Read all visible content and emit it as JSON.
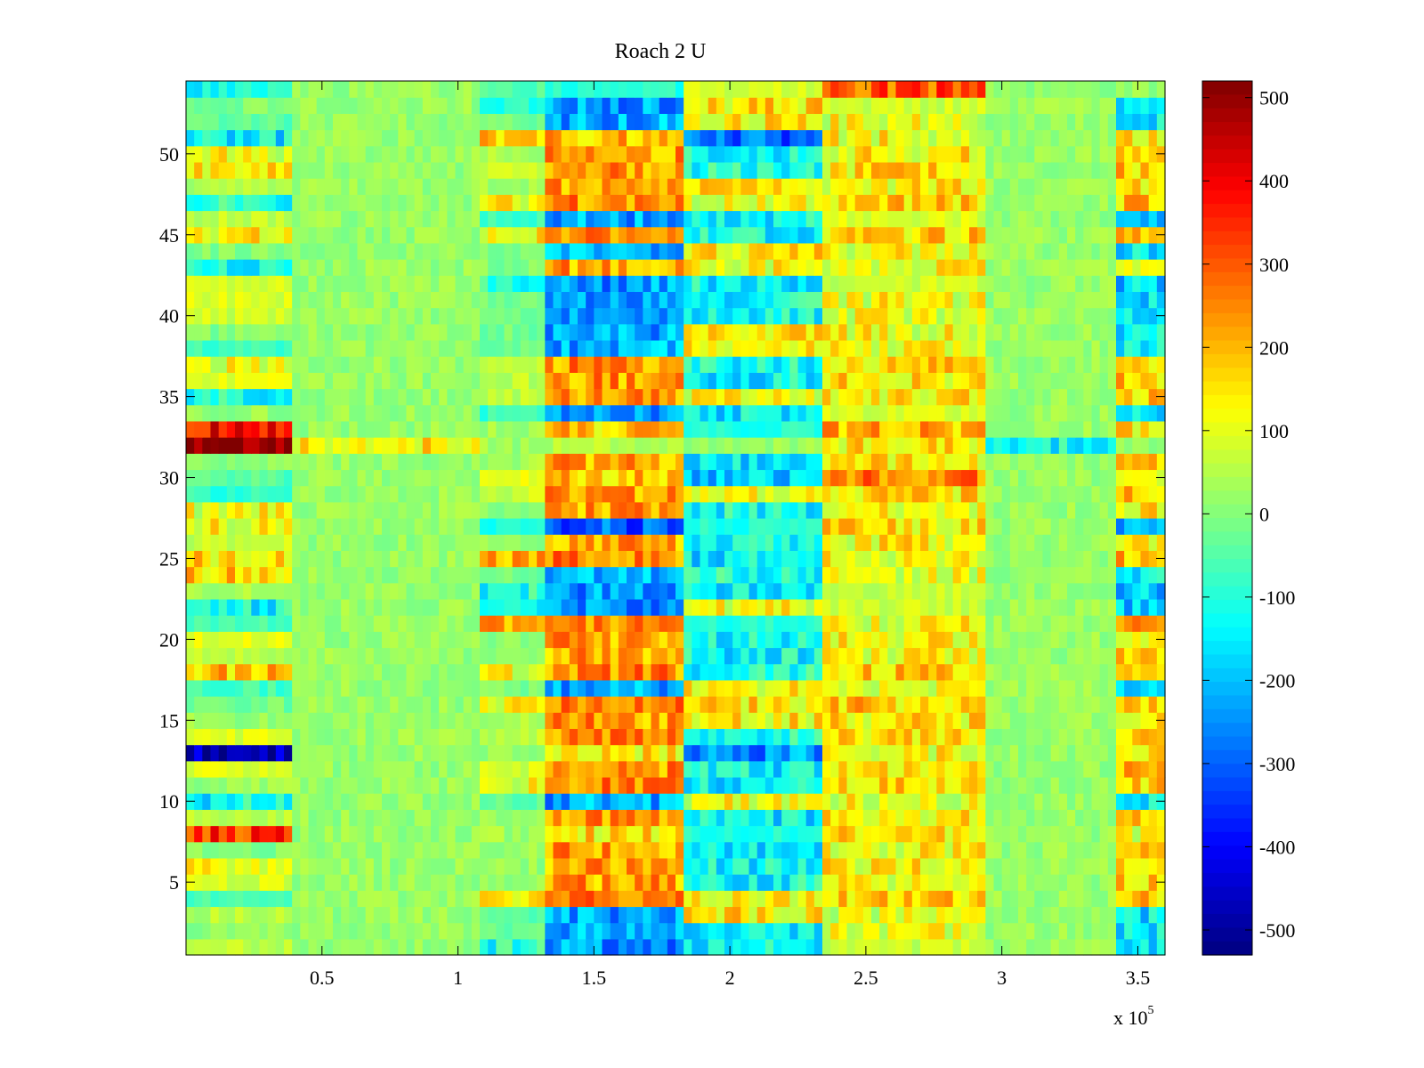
{
  "chart_data": {
    "type": "heatmap",
    "title": "Roach 2 U",
    "xlabel": "",
    "ylabel": "",
    "x_multiplier_label": "x 10",
    "x_multiplier_exponent": "5",
    "xlim": [
      0,
      3.6
    ],
    "ylim": [
      0.5,
      54.5
    ],
    "x_ticks": [
      0.5,
      1,
      1.5,
      2,
      2.5,
      3,
      3.5
    ],
    "x_tick_labels": [
      "0.5",
      "1",
      "1.5",
      "2",
      "2.5",
      "3",
      "3.5"
    ],
    "y_ticks": [
      5,
      10,
      15,
      20,
      25,
      30,
      35,
      40,
      45,
      50
    ],
    "y_tick_labels": [
      "5",
      "10",
      "15",
      "20",
      "25",
      "30",
      "35",
      "40",
      "45",
      "50"
    ],
    "rows": 54,
    "colormap": "jet",
    "colorbar": {
      "clim": [
        -530,
        520
      ],
      "ticks": [
        500,
        400,
        300,
        200,
        100,
        0,
        -100,
        -200,
        -300,
        -400,
        -500
      ],
      "tick_labels": [
        "500",
        "400",
        "300",
        "200",
        "100",
        "0",
        "-100",
        "-200",
        "-300",
        "-400",
        "-500"
      ]
    },
    "approx_segments_x_1e5": [
      0,
      0.38,
      1.08,
      1.33,
      1.83,
      2.35,
      2.95,
      3.42,
      3.6
    ],
    "approx_row_segment_levels": {
      "8": [
        330,
        20,
        30,
        150,
        -100,
        150,
        20,
        120,
        20
      ],
      "13": [
        -480,
        20,
        20,
        150,
        -250,
        120,
        20,
        120,
        20
      ],
      "21": [
        -60,
        20,
        200,
        250,
        -100,
        120,
        20,
        250,
        30
      ],
      "25": [
        150,
        20,
        200,
        250,
        -150,
        120,
        20,
        200,
        30
      ],
      "27": [
        120,
        20,
        -100,
        -300,
        -100,
        150,
        20,
        -250,
        -200
      ],
      "30": [
        -50,
        20,
        100,
        180,
        -200,
        250,
        20,
        100,
        30
      ],
      "32": [
        520,
        150,
        30,
        50,
        30,
        150,
        -120,
        20,
        60
      ],
      "33": [
        380,
        20,
        30,
        180,
        -100,
        200,
        20,
        150,
        30
      ],
      "51": [
        -150,
        20,
        160,
        200,
        -300,
        120,
        20,
        160,
        30
      ],
      "54": [
        -120,
        20,
        -50,
        -100,
        80,
        300,
        20,
        20,
        20
      ]
    }
  }
}
